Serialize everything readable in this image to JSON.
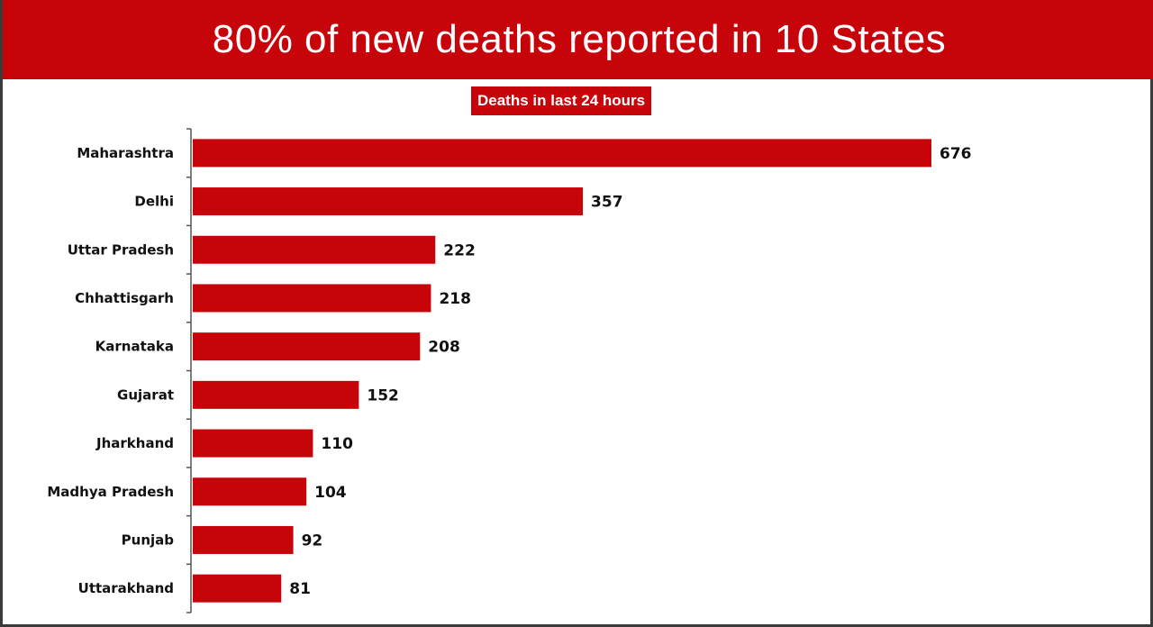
{
  "header": {
    "title": "80% of new deaths reported in 10 States"
  },
  "chart_data": {
    "type": "bar",
    "orientation": "horizontal",
    "title": "80% of new deaths reported in 10 States",
    "subtitle": "Deaths in last 24 hours",
    "categories": [
      "Maharashtra",
      "Delhi",
      "Uttar Pradesh",
      "Chhattisgarh",
      "Karnataka",
      "Gujarat",
      "Jharkhand",
      "Madhya Pradesh",
      "Punjab",
      "Uttarakhand"
    ],
    "values": [
      676,
      357,
      222,
      218,
      208,
      152,
      110,
      104,
      92,
      81
    ],
    "xlim": [
      0,
      676
    ],
    "grid": false,
    "legend": "none",
    "colors": {
      "bar": "#c8040b",
      "header": "#c8040b",
      "text": "#111111"
    }
  }
}
